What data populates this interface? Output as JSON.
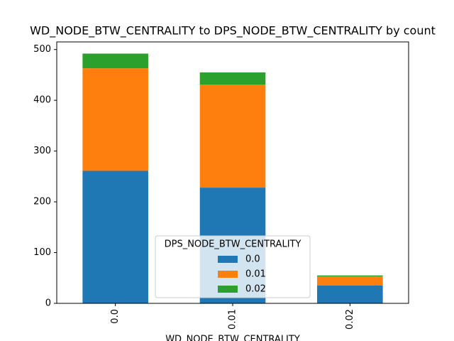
{
  "chart_data": {
    "type": "stacked_bar",
    "title": "WD_NODE_BTW_CENTRALITY to DPS_NODE_BTW_CENTRALITY by count",
    "x_label": "WD_NODE_BTW_CENTRALITY",
    "legend_title": "DPS_NODE_BTW_CENTRALITY",
    "categories": [
      "0.0",
      "0.01",
      "0.02"
    ],
    "series": [
      {
        "name": "0.0",
        "color": "#1f77b4",
        "values": [
          261,
          228,
          35
        ]
      },
      {
        "name": "0.01",
        "color": "#ff7f0e",
        "values": [
          202,
          203,
          18
        ]
      },
      {
        "name": "0.02",
        "color": "#2ca02c",
        "values": [
          29,
          24,
          2
        ]
      }
    ],
    "ylim": [
      0,
      515
    ],
    "yticks": [
      0,
      100,
      200,
      300,
      400,
      500
    ],
    "legend_position": "lower center"
  }
}
